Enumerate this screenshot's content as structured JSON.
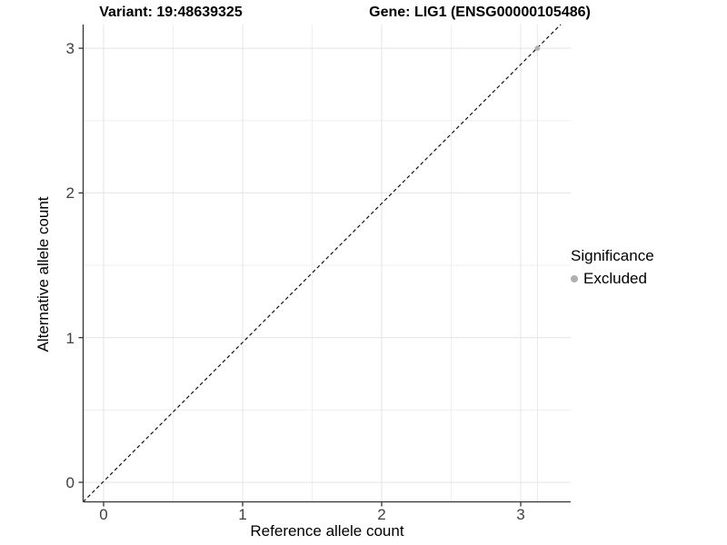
{
  "titles": {
    "left": "Variant: 19:48639325",
    "right": "Gene: LIG1 (ENSG00000105486)"
  },
  "axes": {
    "x": {
      "label": "Reference allele count",
      "tick_labels": [
        "0",
        "1",
        "2",
        "3"
      ]
    },
    "y": {
      "label": "Alternative allele count",
      "tick_labels": [
        "0",
        "1",
        "2",
        "3"
      ]
    }
  },
  "legend": {
    "title": "Significance",
    "items": [
      {
        "label": "Excluded",
        "color": "#b0b0b0"
      }
    ]
  },
  "chart_data": {
    "type": "scatter",
    "title": "Variant: 19:48639325 — Gene: LIG1 (ENSG00000105486)",
    "xlabel": "Reference allele count",
    "ylabel": "Alternative allele count",
    "x_ticks": [
      0,
      1,
      2,
      3
    ],
    "y_ticks": [
      0,
      1,
      2,
      3
    ],
    "minor_x": [
      0.5,
      1.5,
      2.5
    ],
    "minor_y": [
      0.5,
      1.5,
      2.5
    ],
    "xlim": [
      -0.15,
      3.36
    ],
    "ylim": [
      -0.14,
      3.17
    ],
    "grid": "major+minor",
    "legend_position": "right",
    "series": [
      {
        "name": "Excluded",
        "color": "#b0b0b0",
        "points": [
          {
            "x": 3.12,
            "y": 3.0
          }
        ]
      }
    ],
    "identity_line": {
      "type": "y=x",
      "style": "dashed",
      "color": "#111111"
    },
    "extra_vline": {
      "x": 3.12,
      "color": "#e9e9e9"
    },
    "colors": {
      "grid_major": "#e4e4e4",
      "grid_minor": "#efefef",
      "axis_line": "#333333",
      "tick_mark": "#333333",
      "tick_label": "#404040",
      "point": "#b0b0b0"
    }
  }
}
